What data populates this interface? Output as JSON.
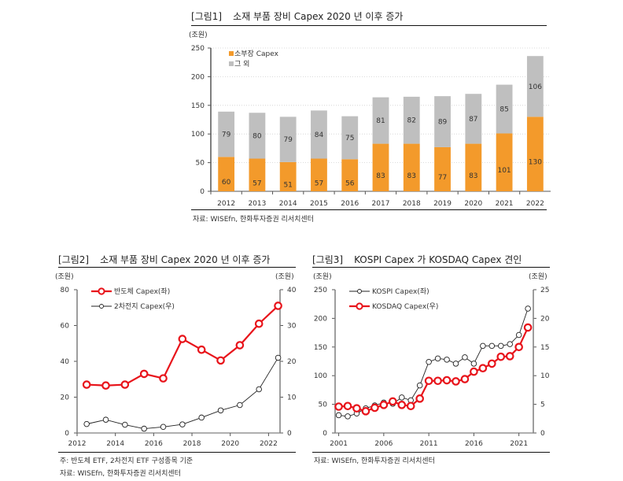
{
  "figures": [
    {
      "num": "[그림1]",
      "title": "소재 부품 장비 Capex 2020 년 이후 증가",
      "source": "자료: WISEfn, 한화투자증권 리서치센터"
    },
    {
      "num": "[그림2]",
      "title": "소재 부품 장비 Capex 2020 년 이후 증가",
      "note": "주: 반도체 ETF, 2차전지 ETF 구성종목 기준",
      "source": "자료: WISEfn, 한화투자증권 리서치센터"
    },
    {
      "num": "[그림3]",
      "title": "KOSPI Capex 가 KOSDAQ Capex 견인",
      "source": "자료: WISEfn, 한화투자증권 리서치센터"
    }
  ],
  "colors": {
    "orange": "#F39A2B",
    "gray": "#BFBFBF",
    "red": "#E8141B",
    "black": "#222222",
    "axis": "#7f7f7f"
  },
  "chart_data": [
    {
      "type": "bar",
      "stacked": true,
      "title": "소재 부품 장비 Capex 2020 년 이후 증가",
      "ylabel": "(조원)",
      "ylim": [
        0,
        250
      ],
      "yticks": [
        0,
        50,
        100,
        150,
        200,
        250
      ],
      "grid": true,
      "legend_position": "top-left",
      "categories": [
        "2012",
        "2013",
        "2014",
        "2015",
        "2016",
        "2017",
        "2018",
        "2019",
        "2020",
        "2021",
        "2022"
      ],
      "series": [
        {
          "name": "소부장 Capex",
          "color": "#F39A2B",
          "values": [
            60,
            57,
            51,
            57,
            56,
            83,
            83,
            77,
            83,
            101,
            130
          ]
        },
        {
          "name": "그 외",
          "color": "#BFBFBF",
          "values": [
            79,
            80,
            79,
            84,
            75,
            81,
            82,
            89,
            87,
            85,
            106
          ]
        }
      ]
    },
    {
      "type": "line",
      "title": "소재 부품 장비 Capex 2020 년 이후 증가",
      "ylabel_left": "(조원)",
      "ylabel_right": "(조원)",
      "ylim_left": [
        0,
        80
      ],
      "ylim_right": [
        0,
        40
      ],
      "yticks_left": [
        0,
        20,
        40,
        60,
        80
      ],
      "yticks_right": [
        0,
        10,
        20,
        30,
        40
      ],
      "xlim": [
        2012,
        2022.6
      ],
      "xticks": [
        "2012",
        "2014",
        "2016",
        "2018",
        "2020",
        "2022"
      ],
      "legend_position": "top-left",
      "x": [
        2012.5,
        2013.5,
        2014.5,
        2015.5,
        2016.5,
        2017.5,
        2018.5,
        2019.5,
        2020.5,
        2021.5,
        2022.5
      ],
      "series": [
        {
          "name": "반도체 Capex(좌)",
          "axis": "left",
          "color": "#E8141B",
          "values": [
            27,
            26.5,
            27,
            33,
            30.5,
            52.5,
            46.5,
            40.5,
            49,
            61,
            71
          ]
        },
        {
          "name": "2차전지 Capex(우)",
          "axis": "right",
          "color": "#222222",
          "values": [
            2.5,
            3.7,
            2.3,
            1.2,
            1.7,
            2.4,
            4.3,
            6.3,
            7.8,
            12.2,
            21
          ]
        }
      ]
    },
    {
      "type": "line",
      "title": "KOSPI Capex 가 KOSDAQ Capex 견인",
      "ylabel_left": "(조원)",
      "ylabel_right": "(조원)",
      "ylim_left": [
        0,
        250
      ],
      "ylim_right": [
        0,
        25
      ],
      "yticks_left": [
        0,
        50,
        100,
        150,
        200,
        250
      ],
      "yticks_right": [
        0,
        5,
        10,
        15,
        20,
        25
      ],
      "xlim": [
        2000.6,
        2022.6
      ],
      "xticks": [
        "2001",
        "2006",
        "2011",
        "2016",
        "2021"
      ],
      "legend_position": "top-left",
      "x": [
        2001,
        2002,
        2003,
        2004,
        2005,
        2006,
        2007,
        2008,
        2009,
        2010,
        2011,
        2012,
        2013,
        2014,
        2015,
        2016,
        2017,
        2018,
        2019,
        2020,
        2021,
        2022
      ],
      "series": [
        {
          "name": "KOSPI Capex(좌)",
          "axis": "left",
          "color": "#222222",
          "values": [
            31,
            29,
            34,
            43,
            48,
            53,
            51,
            62,
            57,
            83,
            124,
            130,
            128,
            121,
            132,
            121,
            152,
            152,
            152,
            155,
            171,
            217
          ]
        },
        {
          "name": "KOSDAQ Capex(우)",
          "axis": "right",
          "color": "#E8141B",
          "values": [
            4.6,
            4.7,
            4.3,
            3.8,
            4.4,
            4.9,
            5.5,
            4.9,
            4.7,
            6.0,
            9.1,
            9.1,
            9.2,
            9.0,
            9.4,
            10.7,
            11.3,
            12.1,
            13.3,
            13.4,
            15.0,
            18.4
          ]
        }
      ]
    }
  ]
}
